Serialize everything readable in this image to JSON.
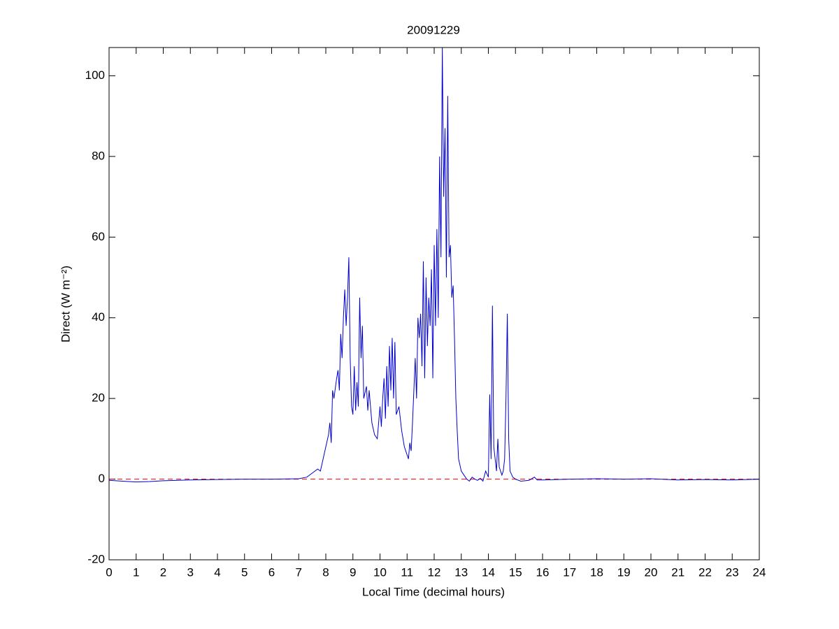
{
  "chart_data": {
    "type": "line",
    "title": "20091229",
    "x_label": "Local Time (decimal hours)",
    "y_label": "Direct (W m⁻²)",
    "xlim": [
      0,
      24
    ],
    "ylim": [
      -20,
      107
    ],
    "xticks": [
      0,
      1,
      2,
      3,
      4,
      5,
      6,
      7,
      8,
      9,
      10,
      11,
      12,
      13,
      14,
      15,
      16,
      17,
      18,
      19,
      20,
      21,
      22,
      23,
      24
    ],
    "yticks": [
      -20,
      0,
      20,
      40,
      60,
      80,
      100
    ],
    "grid": false,
    "reference_line": {
      "y": 0,
      "color": "#ff0000"
    },
    "series": [
      {
        "color": "#0000cc",
        "x": [
          0,
          0.5,
          1,
          1.5,
          2,
          3,
          4,
          5,
          6,
          7,
          7.3,
          7.5,
          7.7,
          7.8,
          7.9,
          8.0,
          8.1,
          8.15,
          8.2,
          8.25,
          8.3,
          8.4,
          8.45,
          8.5,
          8.55,
          8.6,
          8.65,
          8.7,
          8.75,
          8.8,
          8.85,
          8.9,
          8.95,
          9.0,
          9.05,
          9.1,
          9.15,
          9.2,
          9.25,
          9.3,
          9.35,
          9.4,
          9.5,
          9.55,
          9.6,
          9.7,
          9.8,
          9.9,
          10.0,
          10.05,
          10.1,
          10.15,
          10.2,
          10.25,
          10.3,
          10.35,
          10.4,
          10.45,
          10.5,
          10.55,
          10.6,
          10.7,
          10.8,
          10.9,
          11.0,
          11.05,
          11.1,
          11.15,
          11.2,
          11.3,
          11.35,
          11.4,
          11.45,
          11.5,
          11.55,
          11.6,
          11.65,
          11.7,
          11.75,
          11.8,
          11.85,
          11.9,
          11.95,
          12.0,
          12.05,
          12.1,
          12.15,
          12.2,
          12.25,
          12.3,
          12.35,
          12.4,
          12.45,
          12.5,
          12.55,
          12.6,
          12.65,
          12.7,
          12.75,
          12.8,
          12.85,
          12.9,
          13.0,
          13.1,
          13.2,
          13.3,
          13.4,
          13.5,
          13.6,
          13.7,
          13.8,
          13.9,
          14.0,
          14.05,
          14.1,
          14.15,
          14.2,
          14.3,
          14.35,
          14.4,
          14.5,
          14.55,
          14.6,
          14.65,
          14.7,
          14.75,
          14.8,
          14.9,
          15.0,
          15.2,
          15.5,
          15.7,
          15.8,
          16,
          17,
          18,
          19,
          20,
          21,
          22,
          23,
          24
        ],
        "values": [
          -0.3,
          -0.5,
          -0.7,
          -0.6,
          -0.4,
          -0.2,
          -0.1,
          0,
          0,
          0.1,
          0.5,
          1.5,
          2.5,
          2,
          5,
          8,
          11,
          14,
          9,
          22,
          20,
          25,
          27,
          22,
          36,
          30,
          40,
          47,
          38,
          45,
          55,
          30,
          18,
          16,
          28,
          17,
          24,
          18,
          45,
          30,
          38,
          20,
          23,
          17,
          22,
          14,
          11,
          10,
          18,
          13,
          20,
          25,
          15,
          28,
          18,
          33,
          22,
          35,
          20,
          34,
          16,
          18,
          12,
          8,
          6,
          5,
          9,
          7,
          14,
          30,
          20,
          40,
          35,
          41,
          28,
          54,
          25,
          50,
          33,
          45,
          38,
          52,
          25,
          58,
          38,
          62,
          40,
          80,
          55,
          107,
          70,
          87,
          50,
          95,
          55,
          58,
          45,
          48,
          35,
          20,
          12,
          5,
          2,
          1,
          0,
          -0.5,
          0.5,
          0,
          -0.3,
          0.2,
          -0.5,
          2,
          0.5,
          21,
          5,
          43,
          8,
          2,
          10,
          3,
          1,
          2,
          5,
          20,
          41,
          10,
          2,
          0.5,
          0,
          -0.5,
          -0.3,
          0.5,
          -0.2,
          -0.2,
          0,
          0.1,
          0,
          0.1,
          -0.2,
          -0.1,
          -0.2,
          0
        ]
      }
    ]
  }
}
